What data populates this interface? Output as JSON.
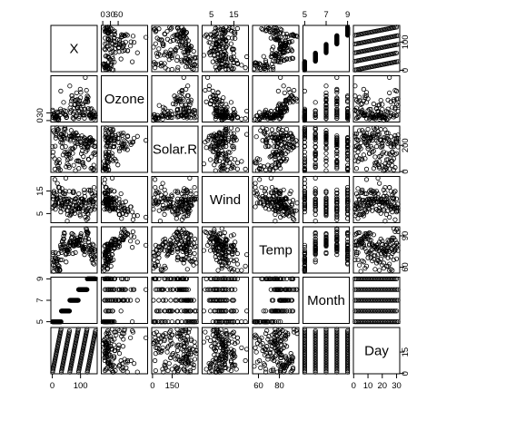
{
  "chart_data": {
    "type": "scatter",
    "subtype": "scatterplot-matrix",
    "title": "",
    "grid": false,
    "variables": [
      "X",
      "Ozone",
      "Solar.R",
      "Wind",
      "Temp",
      "Month",
      "Day"
    ],
    "ranges": {
      "X": [
        1,
        153
      ],
      "Ozone": [
        1,
        168
      ],
      "Solar.R": [
        7,
        334
      ],
      "Wind": [
        1.7,
        20.7
      ],
      "Temp": [
        56,
        97
      ],
      "Month": [
        5,
        9
      ],
      "Day": [
        1,
        31
      ]
    },
    "axis_ticks": {
      "top": [
        {
          "variable": "Ozone",
          "ticks": [
            "0",
            "30",
            "60"
          ]
        },
        {
          "variable": "Wind",
          "ticks": [
            "5",
            "15"
          ]
        },
        {
          "variable": "Month",
          "ticks": [
            "5",
            "7",
            "9"
          ]
        }
      ],
      "bottom": [
        {
          "variable": "X",
          "ticks": [
            "0",
            "100"
          ]
        },
        {
          "variable": "Solar.R",
          "ticks": [
            "0",
            "150"
          ]
        },
        {
          "variable": "Temp",
          "ticks": [
            "60",
            "80"
          ]
        },
        {
          "variable": "Day",
          "ticks": [
            "0",
            "10",
            "20",
            "30"
          ]
        }
      ],
      "left": [
        {
          "variable": "Ozone",
          "ticks": [
            "0",
            "30"
          ]
        },
        {
          "variable": "Wind",
          "ticks": [
            "5",
            "15"
          ]
        },
        {
          "variable": "Month",
          "ticks": [
            "5",
            "7",
            "9"
          ]
        }
      ],
      "right": [
        {
          "variable": "X",
          "ticks": [
            "0",
            "100"
          ]
        },
        {
          "variable": "Solar.R",
          "ticks": [
            "0",
            "200"
          ]
        },
        {
          "variable": "Temp",
          "ticks": [
            "60",
            "90"
          ]
        },
        {
          "variable": "Day",
          "ticks": [
            "0",
            "15"
          ]
        }
      ]
    },
    "data": {
      "X": [
        1,
        2,
        3,
        4,
        5,
        6,
        7,
        8,
        9,
        10,
        11,
        12,
        13,
        14,
        15,
        16,
        17,
        18,
        19,
        20,
        21,
        22,
        23,
        24,
        25,
        26,
        27,
        28,
        29,
        30,
        31,
        32,
        33,
        34,
        35,
        36,
        37,
        38,
        39,
        40,
        41,
        42,
        43,
        44,
        45,
        46,
        47,
        48,
        49,
        50,
        51,
        52,
        53,
        54,
        55,
        56,
        57,
        58,
        59,
        60,
        61,
        62,
        63,
        64,
        65,
        66,
        67,
        68,
        69,
        70,
        71,
        72,
        73,
        74,
        75,
        76,
        77,
        78,
        79,
        80,
        81,
        82,
        83,
        84,
        85,
        86,
        87,
        88,
        89,
        90,
        91,
        92,
        93,
        94,
        95,
        96,
        97,
        98,
        99,
        100,
        101,
        102,
        103,
        104,
        105,
        106,
        107,
        108,
        109,
        110,
        111,
        112,
        113,
        114,
        115,
        116,
        117,
        118,
        119,
        120,
        121,
        122,
        123,
        124,
        125,
        126,
        127,
        128,
        129,
        130,
        131,
        132,
        133,
        134,
        135,
        136,
        137,
        138,
        139,
        140,
        141,
        142,
        143,
        144,
        145,
        146,
        147,
        148,
        149,
        150,
        151,
        152,
        153
      ],
      "Ozone": [
        41,
        36,
        12,
        18,
        null,
        28,
        23,
        19,
        8,
        null,
        7,
        16,
        11,
        14,
        18,
        14,
        34,
        6,
        30,
        11,
        1,
        11,
        4,
        32,
        null,
        null,
        null,
        23,
        45,
        115,
        37,
        null,
        null,
        null,
        null,
        null,
        null,
        29,
        null,
        71,
        39,
        null,
        null,
        23,
        null,
        null,
        21,
        37,
        20,
        12,
        13,
        null,
        null,
        null,
        null,
        null,
        null,
        null,
        null,
        null,
        null,
        135,
        49,
        32,
        null,
        64,
        40,
        77,
        97,
        97,
        85,
        null,
        10,
        27,
        null,
        7,
        48,
        35,
        61,
        79,
        63,
        16,
        null,
        null,
        80,
        108,
        20,
        52,
        82,
        50,
        64,
        59,
        39,
        9,
        16,
        78,
        35,
        66,
        122,
        89,
        110,
        null,
        null,
        44,
        28,
        65,
        null,
        22,
        59,
        23,
        31,
        44,
        21,
        9,
        null,
        45,
        168,
        73,
        null,
        76,
        118,
        84,
        85,
        96,
        78,
        73,
        91,
        47,
        32,
        20,
        23,
        21,
        24,
        44,
        21,
        28,
        9,
        13,
        46,
        18,
        13,
        24,
        16,
        13,
        23,
        36,
        7,
        14,
        30,
        null,
        14,
        18,
        20
      ],
      "Solar.R": [
        190,
        118,
        149,
        313,
        null,
        null,
        299,
        99,
        19,
        194,
        null,
        256,
        290,
        274,
        65,
        334,
        307,
        78,
        322,
        44,
        8,
        320,
        25,
        92,
        66,
        266,
        null,
        13,
        252,
        223,
        279,
        286,
        287,
        242,
        186,
        220,
        264,
        127,
        273,
        291,
        323,
        259,
        250,
        148,
        332,
        322,
        191,
        284,
        37,
        120,
        137,
        150,
        59,
        91,
        250,
        135,
        127,
        47,
        98,
        31,
        138,
        269,
        248,
        236,
        101,
        175,
        314,
        276,
        267,
        272,
        175,
        139,
        264,
        175,
        291,
        48,
        260,
        274,
        285,
        187,
        220,
        7,
        258,
        295,
        294,
        223,
        81,
        82,
        213,
        275,
        253,
        254,
        83,
        24,
        77,
        null,
        null,
        null,
        255,
        229,
        207,
        222,
        137,
        192,
        273,
        157,
        64,
        71,
        51,
        115,
        244,
        190,
        259,
        36,
        255,
        212,
        238,
        215,
        153,
        203,
        225,
        237,
        188,
        167,
        197,
        183,
        189,
        95,
        92,
        252,
        220,
        230,
        259,
        236,
        259,
        238,
        24,
        112,
        237,
        224,
        27,
        238,
        201,
        238,
        14,
        139,
        49,
        20,
        193,
        145,
        191,
        131,
        223
      ],
      "Wind": [
        7.4,
        8,
        12.6,
        11.5,
        14.3,
        14.9,
        8.6,
        13.8,
        20.1,
        8.6,
        6.9,
        9.7,
        9.2,
        10.9,
        13.2,
        11.5,
        12,
        18.4,
        11.5,
        9.7,
        9.7,
        16.6,
        9.7,
        12,
        16.6,
        14.9,
        8,
        12,
        14.9,
        5.7,
        7.4,
        8.6,
        9.7,
        16.1,
        9.2,
        8.6,
        14.3,
        9.7,
        6.9,
        13.8,
        11.5,
        10.9,
        9.2,
        8,
        13.8,
        11.5,
        14.9,
        20.7,
        9.2,
        11.5,
        10.3,
        6.3,
        1.7,
        4.6,
        6.3,
        8,
        8,
        10.3,
        11.5,
        14.9,
        8,
        4.1,
        9.2,
        9.2,
        10.9,
        4.6,
        10.9,
        5.1,
        6.3,
        5.7,
        7.4,
        8.6,
        14.3,
        14.9,
        14.9,
        14.3,
        6.9,
        10.3,
        6.3,
        5.1,
        11.5,
        6.9,
        9.7,
        11.5,
        8.6,
        8,
        8.6,
        12,
        7.4,
        7.4,
        7.4,
        9.2,
        6.9,
        13.8,
        7.4,
        6.9,
        7.4,
        4.6,
        4,
        10.3,
        8,
        8.6,
        11.5,
        11.5,
        11.5,
        9.7,
        11.5,
        10.3,
        6.3,
        7.4,
        10.9,
        10.3,
        15.5,
        14.3,
        12.6,
        9.7,
        3.4,
        8,
        5.7,
        9.7,
        2.3,
        6.3,
        6.3,
        6.9,
        5.1,
        2.8,
        4.6,
        7.4,
        15.5,
        10.9,
        10.3,
        10.9,
        9.7,
        14.9,
        15.5,
        6.3,
        10.9,
        11.5,
        6.9,
        13.8,
        10.3,
        10.3,
        8,
        12.6,
        9.2,
        10.3,
        10.3,
        16.6,
        6.9,
        13.2,
        14.3,
        8,
        11.5
      ],
      "Temp": [
        67,
        72,
        74,
        62,
        56,
        66,
        65,
        59,
        61,
        69,
        74,
        69,
        66,
        68,
        58,
        64,
        66,
        57,
        68,
        62,
        59,
        73,
        61,
        61,
        57,
        58,
        57,
        67,
        81,
        79,
        76,
        78,
        74,
        67,
        84,
        85,
        79,
        82,
        87,
        90,
        87,
        93,
        92,
        82,
        80,
        79,
        77,
        72,
        65,
        73,
        76,
        77,
        76,
        76,
        76,
        75,
        78,
        73,
        80,
        77,
        83,
        84,
        85,
        81,
        84,
        83,
        83,
        88,
        92,
        92,
        89,
        82,
        73,
        81,
        91,
        80,
        81,
        82,
        84,
        87,
        85,
        74,
        81,
        82,
        86,
        85,
        82,
        86,
        88,
        86,
        83,
        81,
        81,
        81,
        82,
        86,
        85,
        87,
        89,
        90,
        90,
        92,
        86,
        86,
        82,
        80,
        79,
        77,
        79,
        76,
        78,
        78,
        77,
        72,
        75,
        79,
        81,
        86,
        88,
        97,
        94,
        96,
        94,
        91,
        92,
        93,
        93,
        87,
        84,
        80,
        78,
        75,
        73,
        81,
        76,
        77,
        71,
        71,
        78,
        67,
        76,
        68,
        82,
        64,
        71,
        81,
        69,
        63,
        70,
        77,
        75,
        76,
        68
      ],
      "Month": [
        5,
        5,
        5,
        5,
        5,
        5,
        5,
        5,
        5,
        5,
        5,
        5,
        5,
        5,
        5,
        5,
        5,
        5,
        5,
        5,
        5,
        5,
        5,
        5,
        5,
        5,
        5,
        5,
        5,
        5,
        5,
        6,
        6,
        6,
        6,
        6,
        6,
        6,
        6,
        6,
        6,
        6,
        6,
        6,
        6,
        6,
        6,
        6,
        6,
        6,
        6,
        6,
        6,
        6,
        6,
        6,
        6,
        6,
        6,
        6,
        6,
        7,
        7,
        7,
        7,
        7,
        7,
        7,
        7,
        7,
        7,
        7,
        7,
        7,
        7,
        7,
        7,
        7,
        7,
        7,
        7,
        7,
        7,
        7,
        7,
        7,
        7,
        7,
        7,
        7,
        7,
        7,
        8,
        8,
        8,
        8,
        8,
        8,
        8,
        8,
        8,
        8,
        8,
        8,
        8,
        8,
        8,
        8,
        8,
        8,
        8,
        8,
        8,
        8,
        8,
        8,
        8,
        8,
        8,
        8,
        8,
        8,
        8,
        9,
        9,
        9,
        9,
        9,
        9,
        9,
        9,
        9,
        9,
        9,
        9,
        9,
        9,
        9,
        9,
        9,
        9,
        9,
        9,
        9,
        9,
        9,
        9,
        9,
        9,
        9,
        9,
        9,
        9,
        9
      ],
      "Day": [
        1,
        2,
        3,
        4,
        5,
        6,
        7,
        8,
        9,
        10,
        11,
        12,
        13,
        14,
        15,
        16,
        17,
        18,
        19,
        20,
        21,
        22,
        23,
        24,
        25,
        26,
        27,
        28,
        29,
        30,
        31,
        1,
        2,
        3,
        4,
        5,
        6,
        7,
        8,
        9,
        10,
        11,
        12,
        13,
        14,
        15,
        16,
        17,
        18,
        19,
        20,
        21,
        22,
        23,
        24,
        25,
        26,
        27,
        28,
        29,
        30,
        1,
        2,
        3,
        4,
        5,
        6,
        7,
        8,
        9,
        10,
        11,
        12,
        13,
        14,
        15,
        16,
        17,
        18,
        19,
        20,
        21,
        22,
        23,
        24,
        25,
        26,
        27,
        28,
        29,
        30,
        31,
        1,
        2,
        3,
        4,
        5,
        6,
        7,
        8,
        9,
        10,
        11,
        12,
        13,
        14,
        15,
        16,
        17,
        18,
        19,
        20,
        21,
        22,
        23,
        24,
        25,
        26,
        27,
        28,
        29,
        30,
        31,
        1,
        2,
        3,
        4,
        5,
        6,
        7,
        8,
        9,
        10,
        11,
        12,
        13,
        14,
        15,
        16,
        17,
        18,
        19,
        20,
        21,
        22,
        23,
        24,
        25,
        26,
        27,
        28,
        29,
        30
      ]
    }
  }
}
